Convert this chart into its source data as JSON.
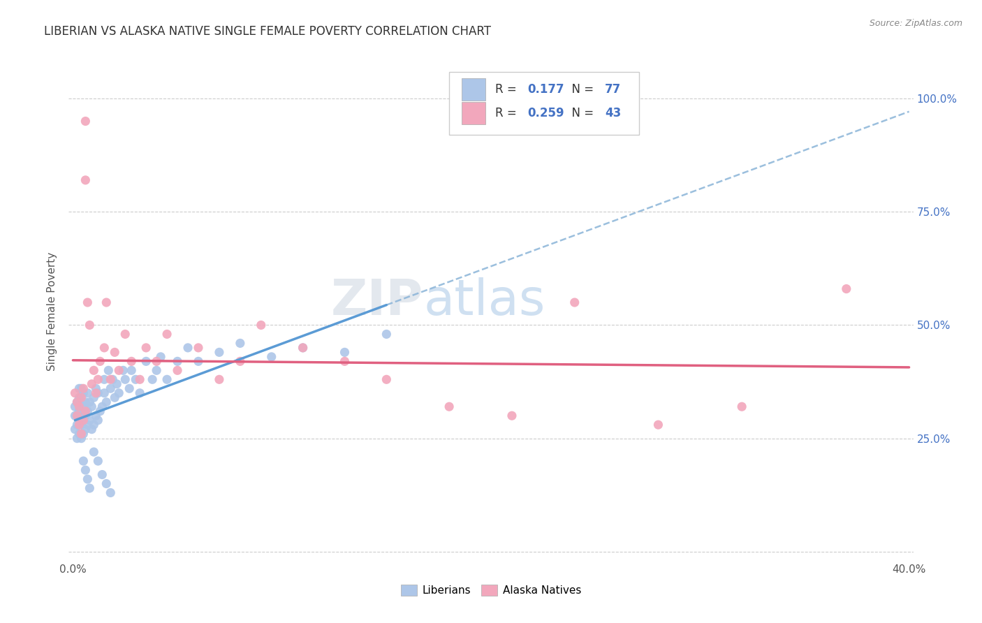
{
  "title": "LIBERIAN VS ALASKA NATIVE SINGLE FEMALE POVERTY CORRELATION CHART",
  "source": "Source: ZipAtlas.com",
  "ylabel": "Single Female Poverty",
  "xlim": [
    -0.002,
    0.402
  ],
  "ylim": [
    -0.02,
    1.08
  ],
  "xticks": [
    0.0,
    0.05,
    0.1,
    0.15,
    0.2,
    0.25,
    0.3,
    0.35,
    0.4
  ],
  "xticklabels": [
    "0.0%",
    "",
    "",
    "",
    "",
    "",
    "",
    "",
    "40.0%"
  ],
  "yticks": [
    0.0,
    0.25,
    0.5,
    0.75,
    1.0
  ],
  "yticklabels": [
    "",
    "25.0%",
    "50.0%",
    "75.0%",
    "100.0%"
  ],
  "R_liberian": 0.177,
  "N_liberian": 77,
  "R_alaska": 0.259,
  "N_alaska": 43,
  "liberian_color": "#adc6e8",
  "alaska_color": "#f2a7bc",
  "liberian_line_color": "#5b9bd5",
  "alaska_line_color": "#e06080",
  "dashed_line_color": "#8ab4d8",
  "watermark_zip": "ZIP",
  "watermark_atlas": "atlas",
  "legend_liberian_label": "Liberians",
  "legend_alaska_label": "Alaska Natives",
  "liberian_x": [
    0.001,
    0.001,
    0.001,
    0.002,
    0.002,
    0.002,
    0.002,
    0.003,
    0.003,
    0.003,
    0.003,
    0.003,
    0.004,
    0.004,
    0.004,
    0.004,
    0.004,
    0.005,
    0.005,
    0.005,
    0.005,
    0.006,
    0.006,
    0.006,
    0.007,
    0.007,
    0.007,
    0.008,
    0.008,
    0.009,
    0.009,
    0.01,
    0.01,
    0.011,
    0.011,
    0.012,
    0.012,
    0.013,
    0.014,
    0.015,
    0.015,
    0.016,
    0.017,
    0.018,
    0.019,
    0.02,
    0.021,
    0.022,
    0.024,
    0.025,
    0.027,
    0.028,
    0.03,
    0.032,
    0.035,
    0.038,
    0.04,
    0.042,
    0.045,
    0.05,
    0.055,
    0.06,
    0.07,
    0.08,
    0.095,
    0.11,
    0.13,
    0.15,
    0.005,
    0.006,
    0.007,
    0.008,
    0.01,
    0.012,
    0.014,
    0.016,
    0.018
  ],
  "liberian_y": [
    0.27,
    0.3,
    0.32,
    0.25,
    0.28,
    0.3,
    0.33,
    0.26,
    0.29,
    0.31,
    0.34,
    0.36,
    0.25,
    0.28,
    0.3,
    0.33,
    0.36,
    0.26,
    0.29,
    0.32,
    0.35,
    0.27,
    0.3,
    0.33,
    0.28,
    0.31,
    0.35,
    0.29,
    0.33,
    0.27,
    0.32,
    0.28,
    0.34,
    0.3,
    0.36,
    0.29,
    0.35,
    0.31,
    0.32,
    0.35,
    0.38,
    0.33,
    0.4,
    0.36,
    0.38,
    0.34,
    0.37,
    0.35,
    0.4,
    0.38,
    0.36,
    0.4,
    0.38,
    0.35,
    0.42,
    0.38,
    0.4,
    0.43,
    0.38,
    0.42,
    0.45,
    0.42,
    0.44,
    0.46,
    0.43,
    0.45,
    0.44,
    0.48,
    0.2,
    0.18,
    0.16,
    0.14,
    0.22,
    0.2,
    0.17,
    0.15,
    0.13
  ],
  "alaska_x": [
    0.001,
    0.002,
    0.002,
    0.003,
    0.003,
    0.004,
    0.004,
    0.005,
    0.005,
    0.006,
    0.007,
    0.008,
    0.009,
    0.01,
    0.011,
    0.012,
    0.013,
    0.015,
    0.016,
    0.018,
    0.02,
    0.022,
    0.025,
    0.028,
    0.032,
    0.035,
    0.04,
    0.045,
    0.05,
    0.06,
    0.07,
    0.08,
    0.09,
    0.11,
    0.13,
    0.15,
    0.18,
    0.21,
    0.24,
    0.28,
    0.32,
    0.37,
    0.006
  ],
  "alaska_y": [
    0.35,
    0.3,
    0.33,
    0.28,
    0.32,
    0.26,
    0.34,
    0.29,
    0.36,
    0.31,
    0.55,
    0.5,
    0.37,
    0.4,
    0.35,
    0.38,
    0.42,
    0.45,
    0.55,
    0.38,
    0.44,
    0.4,
    0.48,
    0.42,
    0.38,
    0.45,
    0.42,
    0.48,
    0.4,
    0.45,
    0.38,
    0.42,
    0.5,
    0.45,
    0.42,
    0.38,
    0.32,
    0.3,
    0.55,
    0.28,
    0.32,
    0.58,
    0.82
  ],
  "alaska_high_x": [
    0.006
  ],
  "alaska_high_y": [
    0.95
  ]
}
